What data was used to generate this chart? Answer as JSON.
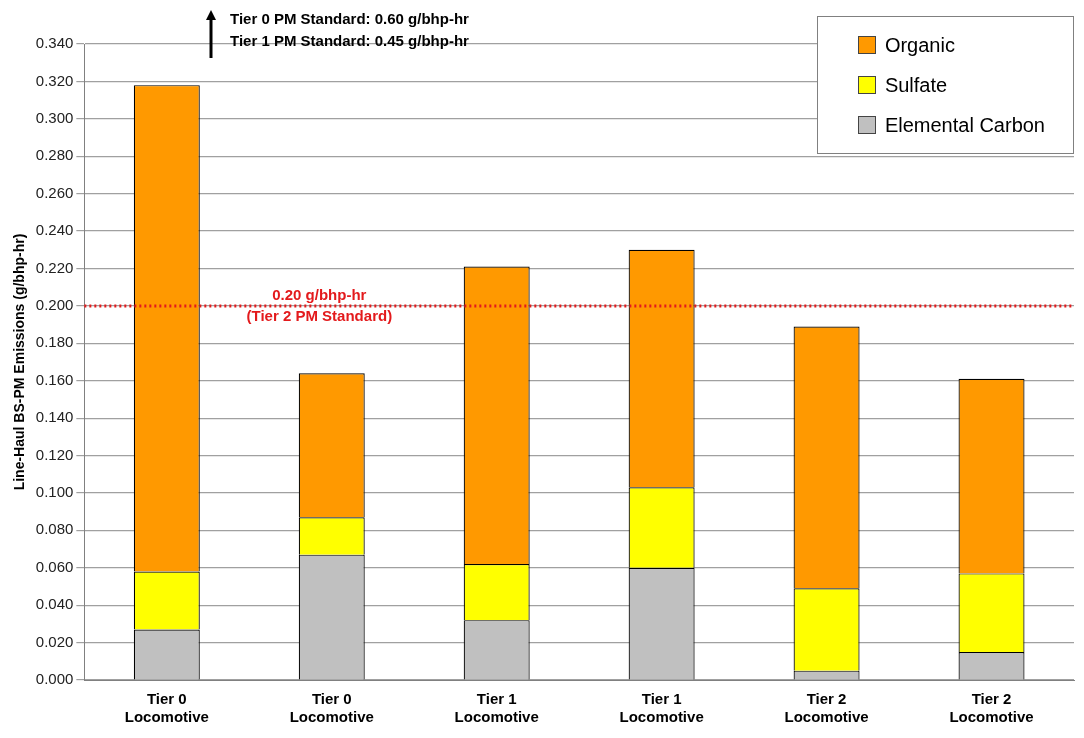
{
  "chart_data": {
    "type": "bar",
    "stacked": true,
    "ylabel": "Line-Haul BS-PM Emissions (g/bhp-hr)",
    "categories": [
      "Tier 0 Locomotive",
      "Tier 0 Locomotive",
      "Tier 1 Locomotive",
      "Tier 1 Locomotive",
      "Tier 2 Locomotive",
      "Tier 2 Locomotive"
    ],
    "series": [
      {
        "name": "Elemental Carbon",
        "color": "#c0c0c0",
        "values": [
          0.027,
          0.067,
          0.032,
          0.06,
          0.005,
          0.015
        ]
      },
      {
        "name": "Sulfate",
        "color": "#ffff00",
        "values": [
          0.031,
          0.02,
          0.03,
          0.043,
          0.044,
          0.042
        ]
      },
      {
        "name": "Organic",
        "color": "#ff9900",
        "values": [
          0.26,
          0.077,
          0.159,
          0.127,
          0.14,
          0.104
        ]
      }
    ],
    "ylim": [
      0,
      0.34
    ],
    "yticks": [
      {
        "value": 0,
        "label": "0.000"
      },
      {
        "value": 0.02,
        "label": "0.020"
      },
      {
        "value": 0.04,
        "label": "0.040"
      },
      {
        "value": 0.06,
        "label": "0.060"
      },
      {
        "value": 0.08,
        "label": "0.080"
      },
      {
        "value": 0.1,
        "label": "0.100"
      },
      {
        "value": 0.12,
        "label": "0.120"
      },
      {
        "value": 0.14,
        "label": "0.140"
      },
      {
        "value": 0.16,
        "label": "0.160"
      },
      {
        "value": 0.18,
        "label": "0.180"
      },
      {
        "value": 0.2,
        "label": "0.200"
      },
      {
        "value": 0.22,
        "label": "0.220"
      },
      {
        "value": 0.24,
        "label": "0.240"
      },
      {
        "value": 0.26,
        "label": "0.260"
      },
      {
        "value": 0.28,
        "label": "0.280"
      },
      {
        "value": 0.3,
        "label": "0.300"
      },
      {
        "value": 0.32,
        "label": "0.320"
      },
      {
        "value": 0.34,
        "label": "0.340"
      }
    ],
    "grid": "y",
    "legend": "top right",
    "ref_lines": [
      {
        "axis": "y",
        "value": 0.2,
        "label": "0.20 g/bhp-hr\n(Tier 2 PM Standard)",
        "color": "#e31a1c",
        "line_style": "dotted"
      }
    ],
    "annotations": [
      "Tier 0 PM Standard: 0.60 g/bhp-hr",
      "Tier 1 PM Standard: 0.45 g/bhp-hr"
    ]
  }
}
